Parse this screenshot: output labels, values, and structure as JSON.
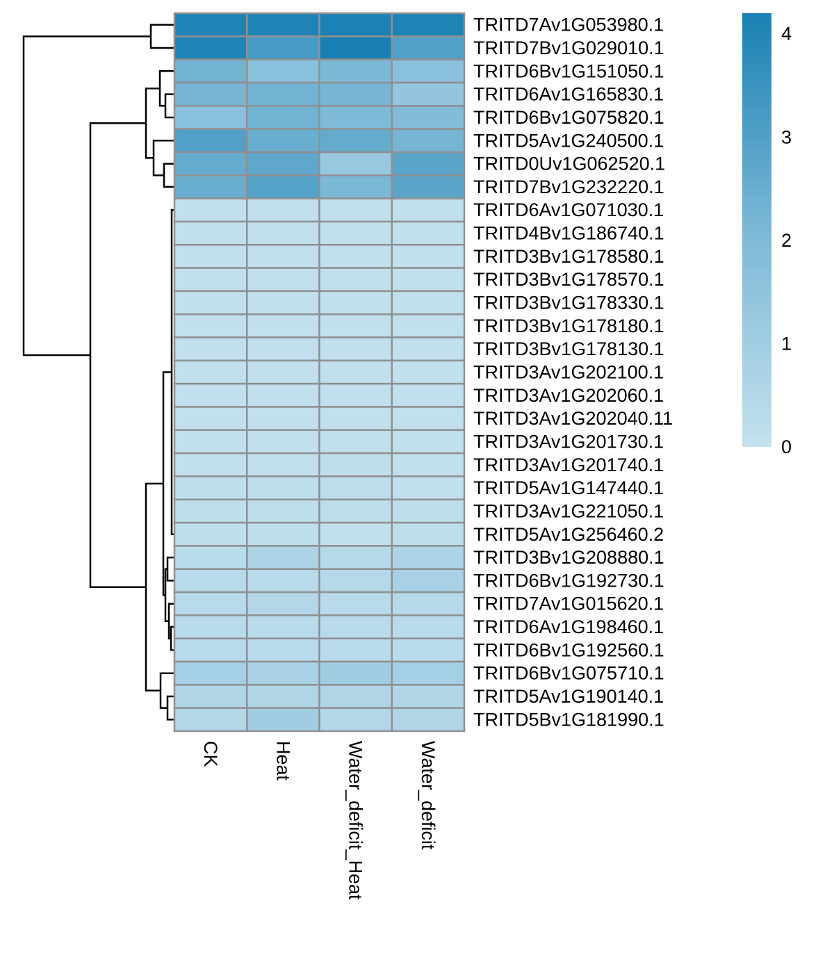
{
  "chart_data": {
    "type": "heatmap",
    "title": "",
    "xlabel": "",
    "ylabel": "",
    "columns": [
      "CK",
      "Heat",
      "Water_deficit_Heat",
      "Water_deficit"
    ],
    "rows": [
      "TRITD7Av1G053980.1",
      "TRITD7Bv1G029010.1",
      "TRITD6Bv1G151050.1",
      "TRITD6Av1G165830.1",
      "TRITD6Bv1G075820.1",
      "TRITD5Av1G240500.1",
      "TRITD0Uv1G062520.1",
      "TRITD7Bv1G232220.1",
      "TRITD6Av1G071030.1",
      "TRITD4Bv1G186740.1",
      "TRITD3Bv1G178580.1",
      "TRITD3Bv1G178570.1",
      "TRITD3Bv1G178330.1",
      "TRITD3Bv1G178180.1",
      "TRITD3Bv1G178130.1",
      "TRITD3Av1G202100.1",
      "TRITD3Av1G202060.1",
      "TRITD3Av1G202040.11",
      "TRITD3Av1G201730.1",
      "TRITD3Av1G201740.1",
      "TRITD5Av1G147440.1",
      "TRITD3Av1G221050.1",
      "TRITD5Av1G256460.2",
      "TRITD3Bv1G208880.1",
      "TRITD6Bv1G192730.1",
      "TRITD7Av1G015620.1",
      "TRITD6Av1G198460.1",
      "TRITD6Bv1G192560.1",
      "TRITD6Bv1G075710.1",
      "TRITD5Av1G190140.1",
      "TRITD5Bv1G181990.1"
    ],
    "values": [
      [
        4.1,
        4.1,
        4.15,
        4.1
      ],
      [
        4.05,
        3.2,
        4.2,
        3.0
      ],
      [
        2.3,
        1.7,
        2.1,
        1.7
      ],
      [
        2.2,
        2.3,
        2.2,
        1.4
      ],
      [
        1.7,
        2.3,
        2.0,
        1.9
      ],
      [
        3.0,
        2.5,
        2.6,
        2.2
      ],
      [
        2.6,
        2.7,
        1.3,
        2.8
      ],
      [
        2.5,
        2.9,
        2.1,
        2.8
      ],
      [
        0.1,
        0.1,
        0.1,
        0.1
      ],
      [
        0.1,
        0.1,
        0.1,
        0.1
      ],
      [
        0.1,
        0.1,
        0.1,
        0.1
      ],
      [
        0.1,
        0.1,
        0.1,
        0.1
      ],
      [
        0.1,
        0.1,
        0.1,
        0.1
      ],
      [
        0.1,
        0.1,
        0.1,
        0.1
      ],
      [
        0.1,
        0.1,
        0.1,
        0.1
      ],
      [
        0.1,
        0.1,
        0.1,
        0.1
      ],
      [
        0.1,
        0.1,
        0.1,
        0.1
      ],
      [
        0.1,
        0.1,
        0.1,
        0.1
      ],
      [
        0.1,
        0.1,
        0.1,
        0.1
      ],
      [
        0.1,
        0.1,
        0.15,
        0.1
      ],
      [
        0.15,
        0.15,
        0.2,
        0.1
      ],
      [
        0.15,
        0.15,
        0.2,
        0.15
      ],
      [
        0.15,
        0.15,
        0.1,
        0.15
      ],
      [
        0.3,
        0.7,
        0.4,
        0.7
      ],
      [
        0.35,
        0.35,
        0.4,
        0.8
      ],
      [
        0.35,
        0.5,
        0.35,
        0.4
      ],
      [
        0.3,
        0.35,
        0.35,
        0.35
      ],
      [
        0.3,
        0.35,
        0.35,
        0.35
      ],
      [
        0.9,
        0.8,
        1.0,
        0.9
      ],
      [
        0.6,
        0.6,
        0.6,
        0.6
      ],
      [
        0.5,
        1.0,
        0.5,
        0.6
      ]
    ],
    "color_scale": {
      "min": 0,
      "max": 4.2,
      "low_color": "#c4e1ee",
      "mid_color": "#7bb8d6",
      "high_color": "#1a80b3",
      "ticks": [
        "0",
        "1",
        "2",
        "3",
        "4"
      ]
    },
    "cell_border_color": "#909090",
    "row_dendrogram": true,
    "legend_position": "right"
  }
}
